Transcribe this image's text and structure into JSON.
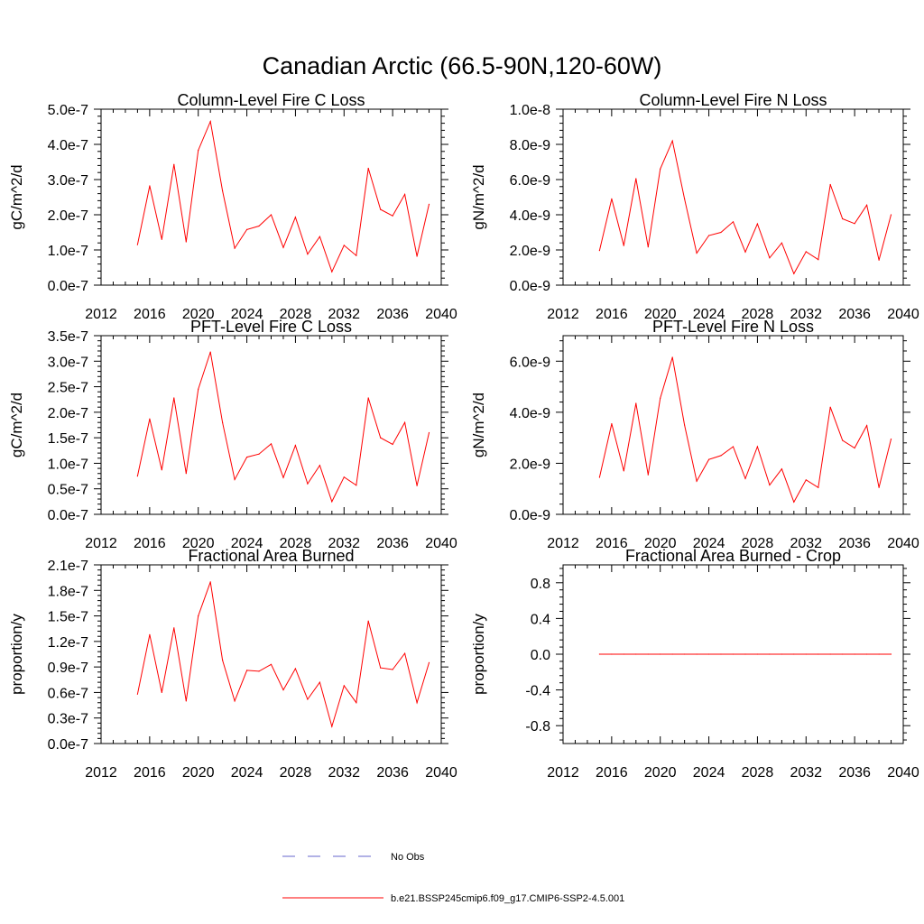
{
  "figure": {
    "title": "Canadian Arctic (66.5-90N,120-60W)"
  },
  "chart_data": [
    {
      "type": "line",
      "title": "Column-Level Fire C Loss",
      "xlabel": "",
      "ylabel": "gC/m^2/d",
      "xlim": [
        2012,
        2040
      ],
      "xticks": [
        2012,
        2016,
        2020,
        2024,
        2028,
        2032,
        2036,
        2040
      ],
      "xtick_labels": [
        "2012",
        "2016",
        "2020",
        "2024",
        "2028",
        "2032",
        "2036",
        "2040"
      ],
      "ylim": [
        0,
        5e-07
      ],
      "yticks": [
        0,
        1e-07,
        2e-07,
        3e-07,
        4e-07,
        5e-07
      ],
      "ytick_labels": [
        "0.0e-7",
        "1.0e-7",
        "2.0e-7",
        "3.0e-7",
        "4.0e-7",
        "5.0e-7"
      ],
      "grid": false,
      "x": [
        2015,
        2016,
        2017,
        2018,
        2019,
        2020,
        2021,
        2022,
        2023,
        2024,
        2025,
        2026,
        2027,
        2028,
        2029,
        2030,
        2031,
        2032,
        2033,
        2034,
        2035,
        2036,
        2037,
        2038,
        2039
      ],
      "series": [
        {
          "name": "b.e21.BSSP245cmip6.f09_g17.CMIP6-SSP2-4.5.001",
          "color": "#ff0000",
          "values": [
            1.15e-07,
            2.82e-07,
            1.3e-07,
            3.43e-07,
            1.23e-07,
            3.83e-07,
            4.65e-07,
            2.68e-07,
            1.05e-07,
            1.58e-07,
            1.68e-07,
            2e-07,
            1.07e-07,
            1.93e-07,
            8.8e-08,
            1.38e-07,
            3.8e-08,
            1.13e-07,
            8.4e-08,
            3.32e-07,
            2.15e-07,
            1.97e-07,
            2.58e-07,
            8.2e-08,
            2.3e-07
          ]
        }
      ]
    },
    {
      "type": "line",
      "title": "Column-Level Fire N Loss",
      "xlabel": "",
      "ylabel": "gN/m^2/d",
      "xlim": [
        2012,
        2040
      ],
      "xticks": [
        2012,
        2016,
        2020,
        2024,
        2028,
        2032,
        2036,
        2040
      ],
      "xtick_labels": [
        "2012",
        "2016",
        "2020",
        "2024",
        "2028",
        "2032",
        "2036",
        "2040"
      ],
      "ylim": [
        0,
        1e-08
      ],
      "yticks": [
        0,
        2e-09,
        4e-09,
        6e-09,
        8e-09,
        1e-08
      ],
      "ytick_labels": [
        "0.0e-9",
        "2.0e-9",
        "4.0e-9",
        "6.0e-9",
        "8.0e-9",
        "1.0e-8"
      ],
      "grid": false,
      "x": [
        2015,
        2016,
        2017,
        2018,
        2019,
        2020,
        2021,
        2022,
        2023,
        2024,
        2025,
        2026,
        2027,
        2028,
        2029,
        2030,
        2031,
        2032,
        2033,
        2034,
        2035,
        2036,
        2037,
        2038,
        2039
      ],
      "series": [
        {
          "name": "b.e21.BSSP245cmip6.f09_g17.CMIP6-SSP2-4.5.001",
          "color": "#ff0000",
          "values": [
            1.97e-09,
            4.9e-09,
            2.25e-09,
            6.05e-09,
            2.17e-09,
            6.6e-09,
            8.2e-09,
            4.9e-09,
            1.82e-09,
            2.82e-09,
            3e-09,
            3.6e-09,
            1.88e-09,
            3.48e-09,
            1.55e-09,
            2.4e-09,
            6.5e-10,
            1.9e-09,
            1.45e-09,
            5.72e-09,
            3.77e-09,
            3.5e-09,
            4.55e-09,
            1.42e-09,
            4e-09
          ]
        }
      ]
    },
    {
      "type": "line",
      "title": "PFT-Level Fire C Loss",
      "xlabel": "",
      "ylabel": "gC/m^2/d",
      "xlim": [
        2012,
        2040
      ],
      "xticks": [
        2012,
        2016,
        2020,
        2024,
        2028,
        2032,
        2036,
        2040
      ],
      "xtick_labels": [
        "2012",
        "2016",
        "2020",
        "2024",
        "2028",
        "2032",
        "2036",
        "2040"
      ],
      "ylim": [
        0,
        3.5e-07
      ],
      "yticks": [
        0,
        5e-08,
        1e-07,
        1.5e-07,
        2e-07,
        2.5e-07,
        3e-07,
        3.5e-07
      ],
      "ytick_labels": [
        "0.0e-7",
        "0.5e-7",
        "1.0e-7",
        "1.5e-7",
        "2.0e-7",
        "2.5e-7",
        "3.0e-7",
        "3.5e-7"
      ],
      "grid": false,
      "x": [
        2015,
        2016,
        2017,
        2018,
        2019,
        2020,
        2021,
        2022,
        2023,
        2024,
        2025,
        2026,
        2027,
        2028,
        2029,
        2030,
        2031,
        2032,
        2033,
        2034,
        2035,
        2036,
        2037,
        2038,
        2039
      ],
      "series": [
        {
          "name": "b.e21.BSSP245cmip6.f09_g17.CMIP6-SSP2-4.5.001",
          "color": "#ff0000",
          "values": [
            7.5e-08,
            1.87e-07,
            8.7e-08,
            2.28e-07,
            8e-08,
            2.45e-07,
            3.18e-07,
            1.8e-07,
            6.8e-08,
            1.12e-07,
            1.18e-07,
            1.38e-07,
            7.2e-08,
            1.35e-07,
            6e-08,
            9.6e-08,
            2.5e-08,
            7.3e-08,
            5.7e-08,
            2.28e-07,
            1.5e-07,
            1.37e-07,
            1.8e-07,
            5.6e-08,
            1.6e-07
          ]
        }
      ]
    },
    {
      "type": "line",
      "title": "PFT-Level Fire N Loss",
      "xlabel": "",
      "ylabel": "gN/m^2/d",
      "xlim": [
        2012,
        2040
      ],
      "xticks": [
        2012,
        2016,
        2020,
        2024,
        2028,
        2032,
        2036,
        2040
      ],
      "xtick_labels": [
        "2012",
        "2016",
        "2020",
        "2024",
        "2028",
        "2032",
        "2036",
        "2040"
      ],
      "ylim": [
        0,
        7e-09
      ],
      "yticks": [
        0,
        2e-09,
        4e-09,
        6e-09
      ],
      "ytick_labels": [
        "0.0e-9",
        "2.0e-9",
        "4.0e-9",
        "6.0e-9"
      ],
      "grid": false,
      "x": [
        2015,
        2016,
        2017,
        2018,
        2019,
        2020,
        2021,
        2022,
        2023,
        2024,
        2025,
        2026,
        2027,
        2028,
        2029,
        2030,
        2031,
        2032,
        2033,
        2034,
        2035,
        2036,
        2037,
        2038,
        2039
      ],
      "series": [
        {
          "name": "b.e21.BSSP245cmip6.f09_g17.CMIP6-SSP2-4.5.001",
          "color": "#ff0000",
          "values": [
            1.45e-09,
            3.55e-09,
            1.7e-09,
            4.35e-09,
            1.55e-09,
            4.55e-09,
            6.15e-09,
            3.5e-09,
            1.3e-09,
            2.15e-09,
            2.3e-09,
            2.65e-09,
            1.4e-09,
            2.65e-09,
            1.15e-09,
            1.78e-09,
            4.8e-10,
            1.35e-09,
            1.05e-09,
            4.2e-09,
            2.9e-09,
            2.6e-09,
            3.48e-09,
            1.05e-09,
            2.95e-09
          ]
        }
      ]
    },
    {
      "type": "line",
      "title": "Fractional Area Burned",
      "xlabel": "",
      "ylabel": "proportion/y",
      "xlim": [
        2012,
        2040
      ],
      "xticks": [
        2012,
        2016,
        2020,
        2024,
        2028,
        2032,
        2036,
        2040
      ],
      "xtick_labels": [
        "2012",
        "2016",
        "2020",
        "2024",
        "2028",
        "2032",
        "2036",
        "2040"
      ],
      "ylim": [
        0,
        2.1e-07
      ],
      "yticks": [
        0,
        3e-08,
        6e-08,
        9e-08,
        1.2e-07,
        1.5e-07,
        1.8e-07,
        2.1e-07
      ],
      "ytick_labels": [
        "0.0e-7",
        "0.3e-7",
        "0.6e-7",
        "0.9e-7",
        "1.2e-7",
        "1.5e-7",
        "1.8e-7",
        "2.1e-7"
      ],
      "grid": false,
      "x": [
        2015,
        2016,
        2017,
        2018,
        2019,
        2020,
        2021,
        2022,
        2023,
        2024,
        2025,
        2026,
        2027,
        2028,
        2029,
        2030,
        2031,
        2032,
        2033,
        2034,
        2035,
        2036,
        2037,
        2038,
        2039
      ],
      "series": [
        {
          "name": "b.e21.BSSP245cmip6.f09_g17.CMIP6-SSP2-4.5.001",
          "color": "#ff0000",
          "values": [
            5.8e-08,
            1.28e-07,
            6e-08,
            1.36e-07,
            5e-08,
            1.5e-07,
            1.9e-07,
            9.8e-08,
            5e-08,
            8.6e-08,
            8.5e-08,
            9.3e-08,
            6.3e-08,
            8.8e-08,
            5.2e-08,
            7.2e-08,
            2e-08,
            6.8e-08,
            4.8e-08,
            1.44e-07,
            8.9e-08,
            8.7e-08,
            1.06e-07,
            4.8e-08,
            9.5e-08
          ]
        }
      ]
    },
    {
      "type": "line",
      "title": "Fractional Area Burned - Crop",
      "xlabel": "",
      "ylabel": "proportion/y",
      "xlim": [
        2012,
        2040
      ],
      "xticks": [
        2012,
        2016,
        2020,
        2024,
        2028,
        2032,
        2036,
        2040
      ],
      "xtick_labels": [
        "2012",
        "2016",
        "2020",
        "2024",
        "2028",
        "2032",
        "2036",
        "2040"
      ],
      "ylim": [
        -1.0,
        1.0
      ],
      "yticks": [
        -0.8,
        -0.4,
        0,
        0.4,
        0.8
      ],
      "ytick_labels": [
        "-0.8",
        "-0.4",
        "0.0",
        "0.4",
        "0.8"
      ],
      "grid": false,
      "x": [
        2015,
        2016,
        2017,
        2018,
        2019,
        2020,
        2021,
        2022,
        2023,
        2024,
        2025,
        2026,
        2027,
        2028,
        2029,
        2030,
        2031,
        2032,
        2033,
        2034,
        2035,
        2036,
        2037,
        2038,
        2039
      ],
      "series": [
        {
          "name": "b.e21.BSSP245cmip6.f09_g17.CMIP6-SSP2-4.5.001",
          "color": "#ff0000",
          "values": [
            0,
            0,
            0,
            0,
            0,
            0,
            0,
            0,
            0,
            0,
            0,
            0,
            0,
            0,
            0,
            0,
            0,
            0,
            0,
            0,
            0,
            0,
            0,
            0,
            0
          ]
        }
      ]
    }
  ],
  "legend": {
    "placement": "bottom-center",
    "items": [
      {
        "label": "No Obs",
        "color": "#6666cc",
        "style": "dashed"
      },
      {
        "label": "b.e21.BSSP245cmip6.f09_g17.CMIP6-SSP2-4.5.001",
        "color": "#ff0000",
        "style": "solid"
      }
    ]
  }
}
